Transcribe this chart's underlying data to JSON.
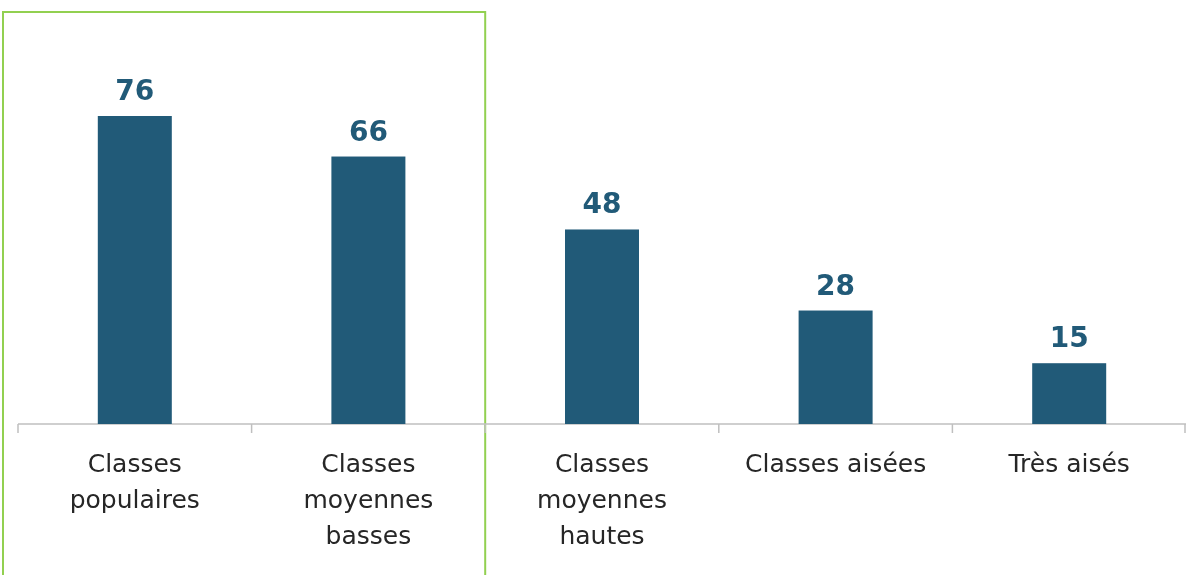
{
  "chart_data": {
    "type": "bar",
    "categories": [
      "Classes populaires",
      "Classes moyennes basses",
      "Classes moyennes hautes",
      "Classes aisées",
      "Très aisés"
    ],
    "values": [
      76,
      66,
      48,
      28,
      15
    ],
    "color": "#215a78",
    "data_labels": true
  }
}
